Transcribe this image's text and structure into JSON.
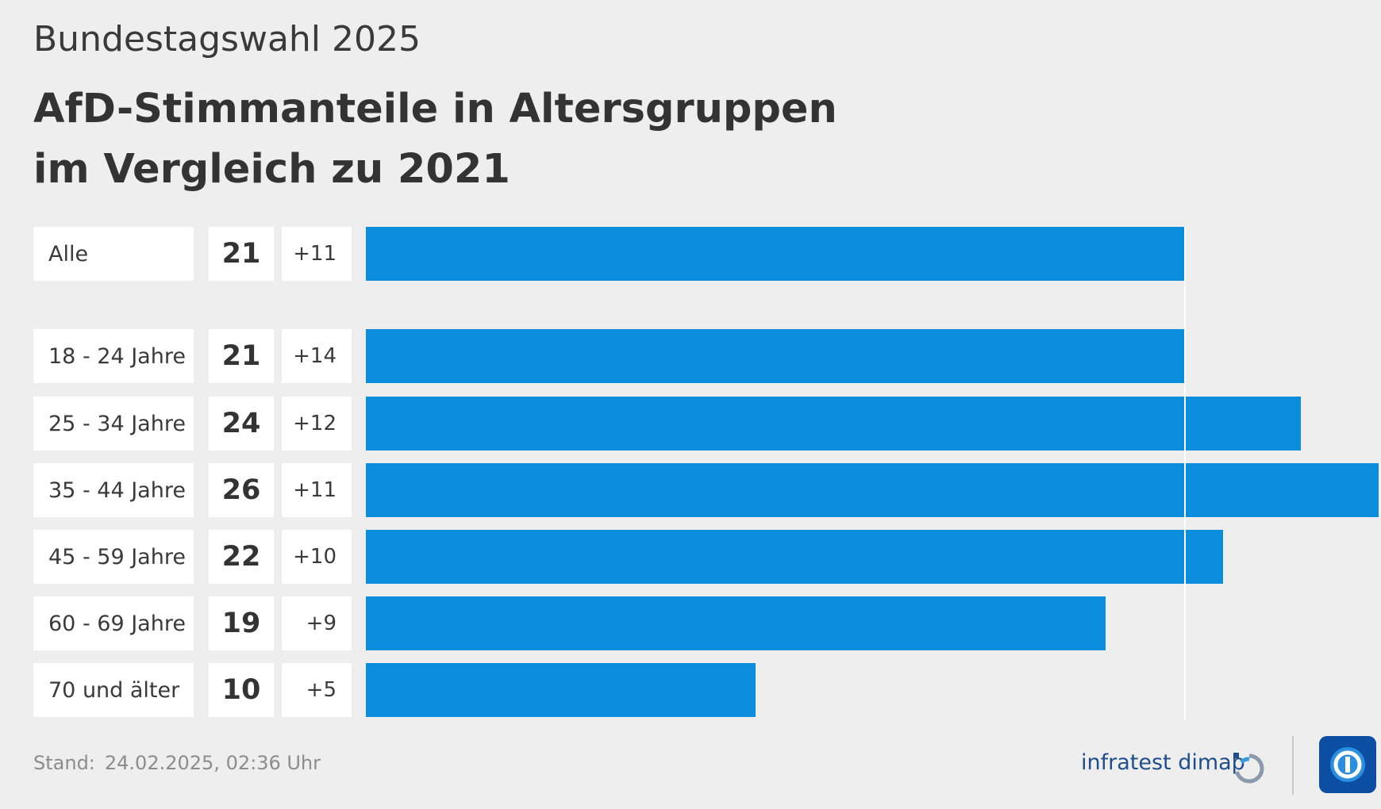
{
  "header": {
    "supertitle": "Bundestagswahl 2025",
    "title_line1": "AfD-Stimmanteile in Altersgruppen",
    "title_line2": "im Vergleich zu 2021"
  },
  "chart_data": {
    "type": "bar",
    "orientation": "horizontal",
    "title": "AfD-Stimmanteile in Altersgruppen im Vergleich zu 2021",
    "categories": [
      "Alle",
      "18 - 24 Jahre",
      "25 - 34 Jahre",
      "35 - 44 Jahre",
      "45 - 59 Jahre",
      "60 - 69 Jahre",
      "70 und älter"
    ],
    "values": [
      21,
      21,
      24,
      26,
      22,
      19,
      10
    ],
    "value_labels": [
      "21",
      "21",
      "24",
      "26",
      "22",
      "19",
      "10"
    ],
    "change_labels": [
      "+11",
      "+14",
      "+12",
      "+11",
      "+10",
      "+9",
      "+5"
    ],
    "change_values": [
      11,
      14,
      12,
      11,
      10,
      9,
      5
    ],
    "reference_value": 21,
    "xlim": [
      0,
      26
    ],
    "grid": false,
    "legend": "none",
    "bar_color": "#0a8ddc"
  },
  "footer": {
    "stand_label": "Stand:",
    "stand_value": "24.02.2025, 02:36 Uhr",
    "source_logo_text": "infratest dimap",
    "icons": {
      "source_logo": "infratest-dimap-logo-icon",
      "broadcaster_logo": "das-erste-logo-icon"
    }
  },
  "colors": {
    "background": "#efeeef",
    "bar": "#0a8ddc",
    "cell": "#ffffff",
    "source_logo": "#1f4e8c",
    "broadcaster_logo": "#0b4ea2"
  }
}
